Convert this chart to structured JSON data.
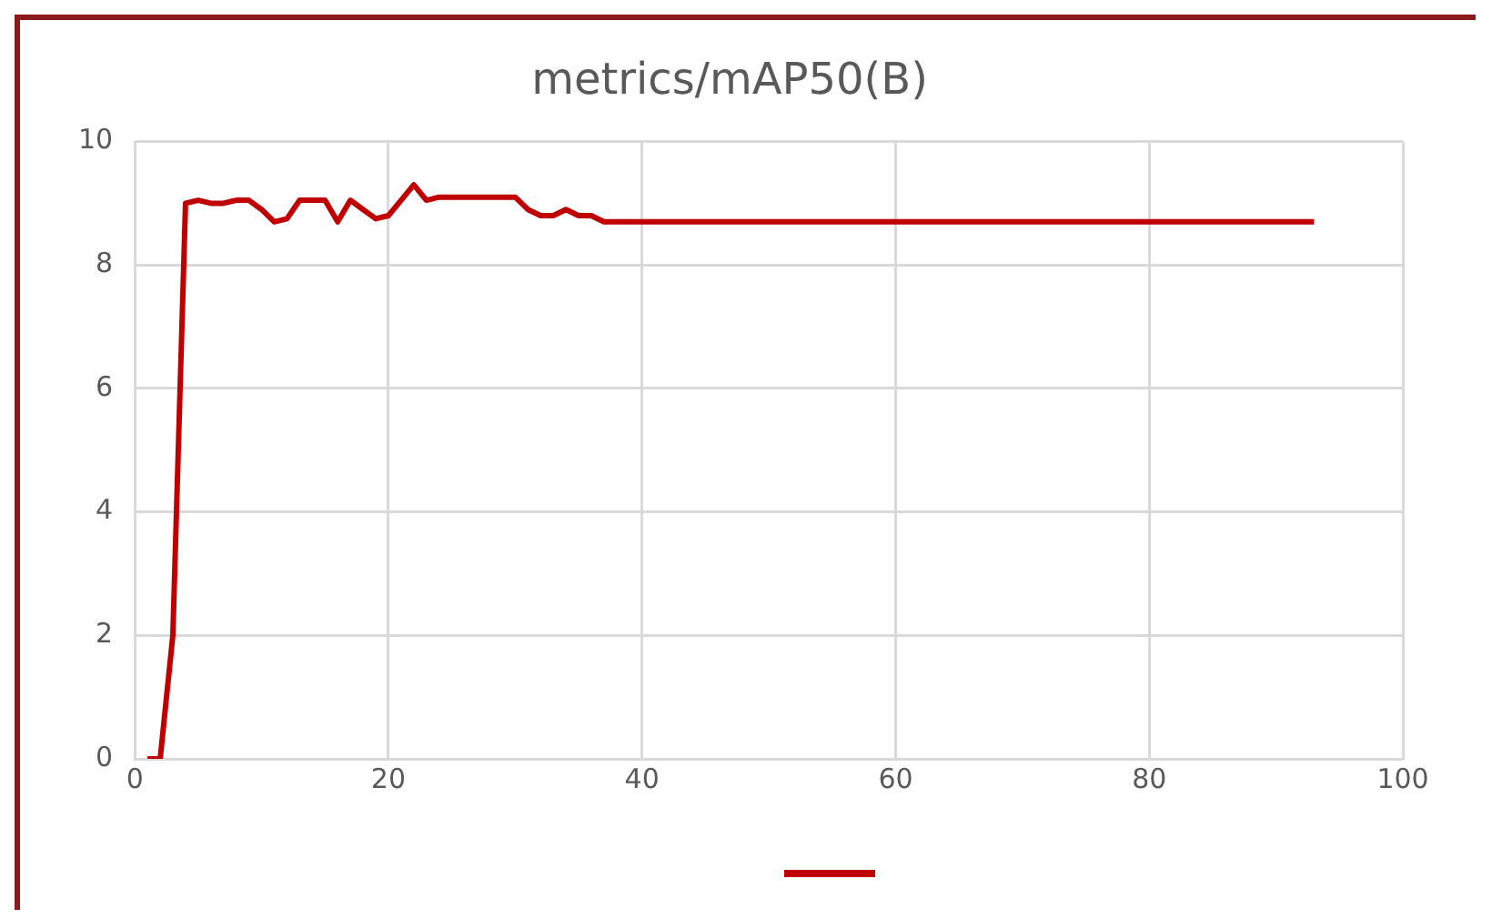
{
  "chart_data": {
    "type": "line",
    "title": "metrics/mAP50(B)",
    "x": [
      1,
      2,
      3,
      4,
      5,
      6,
      7,
      8,
      9,
      10,
      11,
      12,
      13,
      14,
      15,
      16,
      17,
      18,
      19,
      20,
      21,
      22,
      23,
      24,
      25,
      26,
      27,
      28,
      29,
      30,
      31,
      32,
      33,
      34,
      35,
      36,
      37,
      93
    ],
    "series": [
      {
        "color": "#c00000",
        "values": [
          0,
          0,
          2,
          9,
          9.05,
          9,
          9,
          9.05,
          9.05,
          8.9,
          8.7,
          8.75,
          9.05,
          9.05,
          9.05,
          8.7,
          9.05,
          8.9,
          8.75,
          8.8,
          9.05,
          9.3,
          9.05,
          9.1,
          9.1,
          9.1,
          9.1,
          9.1,
          9.1,
          9.1,
          8.9,
          8.8,
          8.8,
          8.9,
          8.8,
          8.8,
          8.7,
          8.7
        ]
      }
    ],
    "xlim": [
      0,
      100
    ],
    "xticks": [
      0,
      20,
      40,
      60,
      80,
      100
    ],
    "ylim": [
      0,
      10
    ],
    "yticks": [
      0,
      2,
      4,
      6,
      8,
      10
    ],
    "grid": true,
    "marker": "none",
    "line_style": "solid"
  }
}
